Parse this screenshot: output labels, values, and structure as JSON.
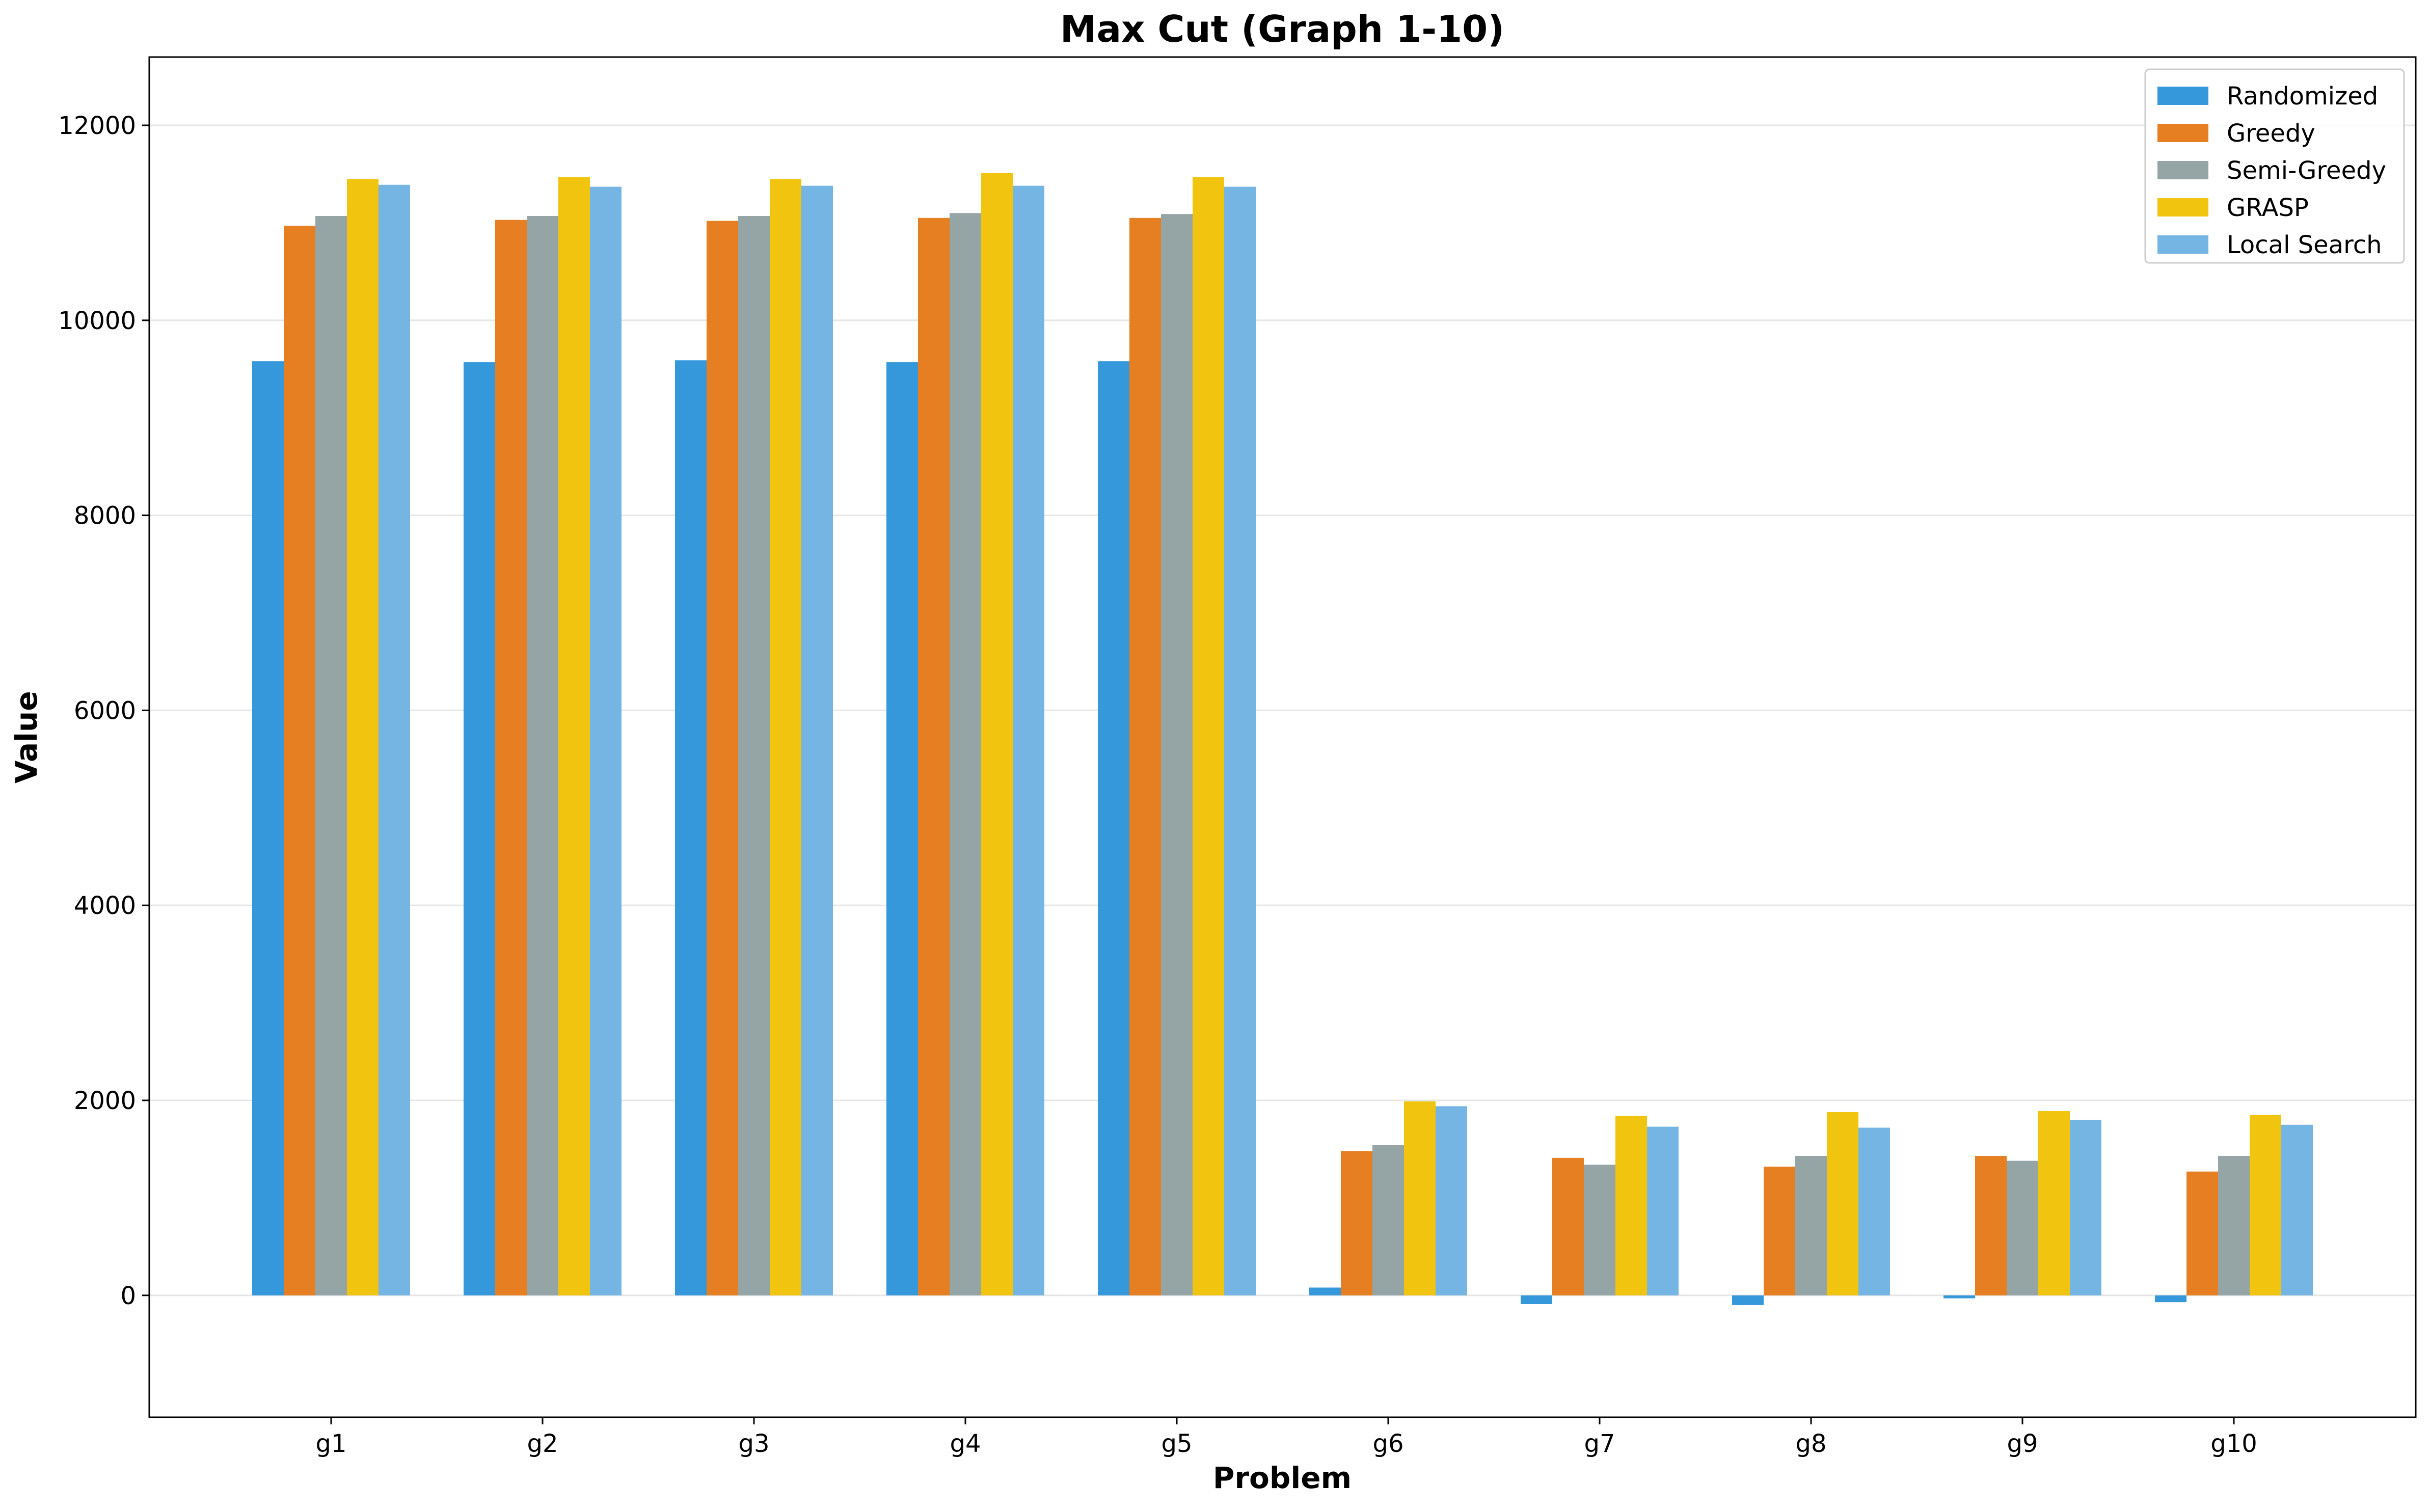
{
  "chart_data": {
    "type": "bar",
    "title": "Max Cut (Graph 1-10)",
    "xlabel": "Problem",
    "ylabel": "Value",
    "categories": [
      "g1",
      "g2",
      "g3",
      "g4",
      "g5",
      "g6",
      "g7",
      "g8",
      "g9",
      "g10"
    ],
    "ylim": [
      -1250,
      12700
    ],
    "yticks": [
      0,
      2000,
      4000,
      6000,
      8000,
      10000,
      12000
    ],
    "grid": "horizontal",
    "legend_position": "top-right",
    "series": [
      {
        "name": "Randomized",
        "color": "#3498db",
        "values": [
          9580,
          9570,
          9590,
          9570,
          9580,
          80,
          -90,
          -100,
          -30,
          -70
        ]
      },
      {
        "name": "Greedy",
        "color": "#e67e22",
        "values": [
          10970,
          11030,
          11020,
          11050,
          11050,
          1480,
          1410,
          1320,
          1430,
          1270
        ]
      },
      {
        "name": "Semi-Greedy",
        "color": "#95a5a6",
        "values": [
          11070,
          11070,
          11070,
          11100,
          11090,
          1540,
          1340,
          1430,
          1380,
          1430
        ]
      },
      {
        "name": "GRASP",
        "color": "#f1c40f",
        "values": [
          11450,
          11470,
          11450,
          11510,
          11470,
          1990,
          1840,
          1880,
          1890,
          1850
        ]
      },
      {
        "name": "Local Search",
        "color": "#74b5e3",
        "values": [
          11390,
          11370,
          11380,
          11380,
          11370,
          1940,
          1730,
          1720,
          1800,
          1750
        ]
      }
    ]
  }
}
